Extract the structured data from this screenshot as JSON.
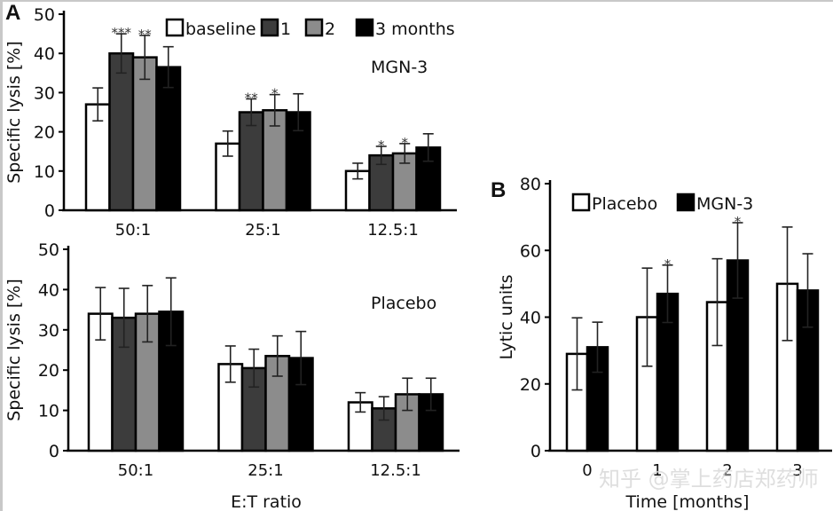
{
  "chart_data": [
    {
      "panel": "A",
      "subplot": "top",
      "type": "bar",
      "title": "",
      "annotation": "MGN-3",
      "xlabel": "",
      "ylabel": "Specific lysis [%]",
      "ylim": [
        0,
        50
      ],
      "yticks": [
        0,
        10,
        20,
        30,
        40,
        50
      ],
      "categories": [
        "50:1",
        "25:1",
        "12.5:1"
      ],
      "legend": {
        "placement": "top",
        "entries": [
          "baseline",
          "1",
          "2",
          "3 months"
        ]
      },
      "series": [
        {
          "name": "baseline",
          "color": "#ffffff",
          "values": [
            27,
            17,
            10
          ],
          "errors": [
            4.2,
            3.2,
            2.0
          ],
          "stars": [
            "",
            "",
            ""
          ]
        },
        {
          "name": "1",
          "color": "#3c3c3c",
          "values": [
            40,
            25,
            14
          ],
          "errors": [
            5.0,
            3.4,
            2.3
          ],
          "stars": [
            "***",
            "**",
            "*"
          ]
        },
        {
          "name": "2",
          "color": "#8c8c8c",
          "values": [
            39,
            25.5,
            14.5
          ],
          "errors": [
            5.6,
            4.0,
            2.5
          ],
          "stars": [
            "**",
            "*",
            "*"
          ]
        },
        {
          "name": "3 months",
          "color": "#000000",
          "values": [
            36.5,
            25,
            16
          ],
          "errors": [
            5.2,
            4.7,
            3.5
          ],
          "stars": [
            "",
            "",
            ""
          ]
        }
      ]
    },
    {
      "panel": "A",
      "subplot": "bottom",
      "type": "bar",
      "title": "",
      "annotation": "Placebo",
      "xlabel": "E:T ratio",
      "ylabel": "Specific lysis [%]",
      "ylim": [
        0,
        50
      ],
      "yticks": [
        0,
        10,
        20,
        30,
        40,
        50
      ],
      "categories": [
        "50:1",
        "25:1",
        "12.5:1"
      ],
      "series": [
        {
          "name": "baseline",
          "color": "#ffffff",
          "values": [
            34,
            21.5,
            12
          ],
          "errors": [
            6.5,
            4.5,
            2.4
          ]
        },
        {
          "name": "1",
          "color": "#3c3c3c",
          "values": [
            33,
            20.5,
            10.5
          ],
          "errors": [
            7.3,
            4.7,
            2.9
          ]
        },
        {
          "name": "2",
          "color": "#8c8c8c",
          "values": [
            34,
            23.5,
            14
          ],
          "errors": [
            7.0,
            5.0,
            4.0
          ]
        },
        {
          "name": "3 months",
          "color": "#000000",
          "values": [
            34.5,
            23,
            14
          ],
          "errors": [
            8.4,
            6.6,
            4.0
          ]
        }
      ]
    },
    {
      "panel": "B",
      "type": "bar",
      "title": "",
      "xlabel": "Time [months]",
      "ylabel": "Lytic units",
      "ylim": [
        0,
        80
      ],
      "yticks": [
        0,
        20,
        40,
        60,
        80
      ],
      "categories": [
        "0",
        "1",
        "2",
        "3"
      ],
      "legend": {
        "placement": "top",
        "entries": [
          "Placebo",
          "MGN-3"
        ]
      },
      "series": [
        {
          "name": "Placebo",
          "color": "#ffffff",
          "values": [
            29,
            40,
            44.5,
            50
          ],
          "errors": [
            10.8,
            14.7,
            13,
            17
          ],
          "stars": [
            "",
            "",
            "",
            ""
          ]
        },
        {
          "name": "MGN-3",
          "color": "#000000",
          "values": [
            31,
            47,
            57,
            48
          ],
          "errors": [
            7.5,
            8.6,
            11.3,
            11
          ],
          "stars": [
            "",
            "*",
            "*",
            ""
          ]
        }
      ]
    }
  ],
  "labels": {
    "panel_a": "A",
    "panel_b": "B",
    "watermark": "知乎 @掌上药店郑药师"
  }
}
